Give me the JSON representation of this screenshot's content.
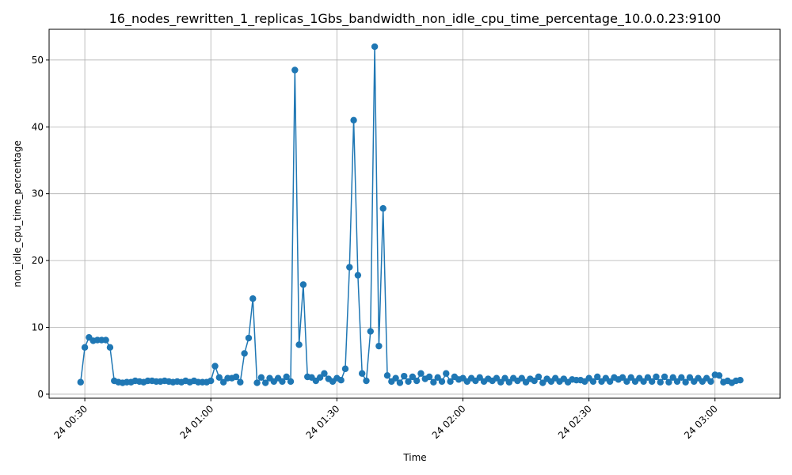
{
  "chart_data": {
    "type": "line",
    "title": "16_nodes_rewritten_1_replicas_1Gbs_bandwidth_non_idle_cpu_time_percentage_10.0.0.23:9100",
    "xlabel": "Time",
    "ylabel": "non_idle_cpu_time_percentage",
    "x_unit": "minutes after 24 00:00",
    "xlim": [
      21.5,
      195.5
    ],
    "ylim": [
      -0.6,
      54.6
    ],
    "x_ticks": [
      {
        "value": 30,
        "label": "24 00:30"
      },
      {
        "value": 60,
        "label": "24 01:00"
      },
      {
        "value": 90,
        "label": "24 01:30"
      },
      {
        "value": 120,
        "label": "24 02:00"
      },
      {
        "value": 150,
        "label": "24 02:30"
      },
      {
        "value": 180,
        "label": "24 03:00"
      }
    ],
    "y_ticks": [
      0,
      10,
      20,
      30,
      40,
      50
    ],
    "grid": true,
    "color": "#1f77b4",
    "series": [
      {
        "name": "",
        "x": [
          29,
          30,
          31,
          32,
          33,
          34,
          35,
          36,
          37,
          38,
          39,
          40,
          41,
          42,
          43,
          44,
          45,
          46,
          47,
          48,
          49,
          50,
          51,
          52,
          53,
          54,
          55,
          56,
          57,
          58,
          59,
          60,
          61,
          62,
          63,
          64,
          65,
          66,
          67,
          68,
          69,
          70,
          71,
          72,
          73,
          74,
          75,
          76,
          77,
          78,
          79,
          80,
          81,
          82,
          83,
          84,
          85,
          86,
          87,
          88,
          89,
          90,
          91,
          92,
          93,
          94,
          95,
          96,
          97,
          98,
          99,
          100,
          101,
          102,
          103,
          104,
          105,
          106,
          107,
          108,
          109,
          110,
          111,
          112,
          113,
          114,
          115,
          116,
          117,
          118,
          119,
          120,
          121,
          122,
          123,
          124,
          125,
          126,
          127,
          128,
          129,
          130,
          131,
          132,
          133,
          134,
          135,
          136,
          137,
          138,
          139,
          140,
          141,
          142,
          143,
          144,
          145,
          146,
          147,
          148,
          149,
          150,
          151,
          152,
          153,
          154,
          155,
          156,
          157,
          158,
          159,
          160,
          161,
          162,
          163,
          164,
          165,
          166,
          167,
          168,
          169,
          170,
          171,
          172,
          173,
          174,
          175,
          176,
          177,
          178,
          179,
          180,
          181,
          182,
          183,
          184,
          185,
          186
        ],
        "values": [
          1.8,
          7.0,
          8.5,
          8.0,
          8.1,
          8.1,
          8.1,
          7.0,
          2.0,
          1.8,
          1.7,
          1.8,
          1.8,
          2.0,
          1.9,
          1.8,
          2.0,
          2.0,
          1.9,
          1.9,
          2.0,
          1.9,
          1.8,
          1.9,
          1.8,
          2.0,
          1.8,
          2.0,
          1.8,
          1.8,
          1.8,
          2.0,
          4.2,
          2.5,
          1.8,
          2.4,
          2.4,
          2.6,
          1.8,
          6.1,
          8.4,
          14.3,
          1.7,
          2.5,
          1.7,
          2.4,
          1.9,
          2.4,
          1.9,
          2.6,
          1.9,
          48.5,
          7.4,
          16.4,
          2.6,
          2.5,
          2.0,
          2.5,
          3.1,
          2.3,
          1.9,
          2.4,
          2.1,
          3.8,
          19.0,
          41.0,
          17.8,
          3.1,
          2.0,
          9.4,
          52.0,
          7.2,
          27.8,
          2.8,
          1.9,
          2.4,
          1.7,
          2.7,
          1.9,
          2.6,
          2.0,
          3.1,
          2.3,
          2.6,
          1.8,
          2.5,
          1.9,
          3.1,
          1.9,
          2.6,
          2.2,
          2.4,
          1.9,
          2.4,
          2.0,
          2.5,
          1.9,
          2.3,
          2.0,
          2.4,
          1.8,
          2.4,
          1.8,
          2.4,
          2.0,
          2.4,
          1.8,
          2.3,
          2.0,
          2.6,
          1.7,
          2.3,
          1.9,
          2.4,
          1.9,
          2.3,
          1.8,
          2.2,
          2.1,
          2.1,
          1.9,
          2.4,
          1.9,
          2.6,
          1.9,
          2.4,
          1.9,
          2.5,
          2.2,
          2.5,
          1.9,
          2.5,
          1.9,
          2.4,
          1.9,
          2.5,
          1.9,
          2.6,
          1.8,
          2.6,
          1.8,
          2.5,
          1.9,
          2.5,
          1.8,
          2.5,
          1.9,
          2.4,
          1.9,
          2.4,
          1.9,
          2.9,
          2.8,
          1.8,
          2.0,
          1.7,
          2.0,
          2.1
        ]
      }
    ]
  }
}
